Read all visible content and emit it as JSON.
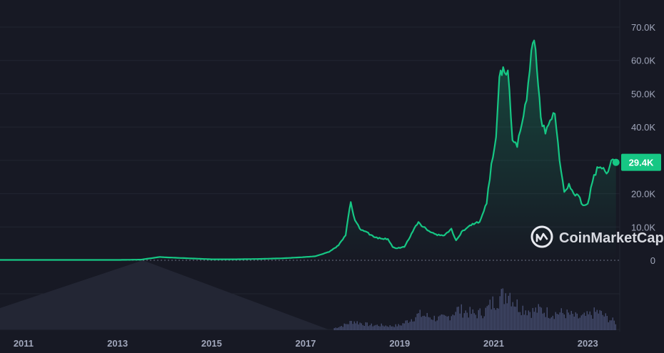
{
  "chart_data": {
    "type": "line",
    "series": [
      {
        "x": [
          2010.5,
          2011.5,
          2012.5,
          2013.0,
          2013.5,
          2013.9,
          2014.0,
          2014.5,
          2015.0,
          2015.5,
          2016.0,
          2016.5,
          2016.9,
          2017.2,
          2017.5,
          2017.7,
          2017.85,
          2017.96,
          2018.05,
          2018.15,
          2018.3,
          2018.45,
          2018.6,
          2018.75,
          2018.85,
          2018.95,
          2019.1,
          2019.25,
          2019.4,
          2019.5,
          2019.65,
          2019.8,
          2019.95,
          2020.1,
          2020.2,
          2020.35,
          2020.55,
          2020.7,
          2020.85,
          2020.95,
          2021.05,
          2021.12,
          2021.2,
          2021.3,
          2021.4,
          2021.5,
          2021.6,
          2021.7,
          2021.8,
          2021.86,
          2021.92,
          2022.0,
          2022.1,
          2022.2,
          2022.3,
          2022.4,
          2022.5,
          2022.6,
          2022.7,
          2022.8,
          2022.9,
          2023.0,
          2023.1,
          2023.2,
          2023.3,
          2023.4,
          2023.5,
          2023.6
        ],
        "values": [
          0.1,
          0.1,
          0.1,
          0.1,
          0.2,
          1.0,
          0.9,
          0.6,
          0.3,
          0.3,
          0.4,
          0.6,
          0.9,
          1.2,
          2.5,
          4.5,
          7.5,
          17.5,
          12.0,
          9.5,
          8.5,
          7.0,
          6.5,
          6.4,
          4.0,
          3.6,
          4.0,
          8.0,
          11.5,
          10.0,
          8.5,
          7.5,
          7.5,
          9.5,
          6.0,
          9.0,
          11.0,
          11.5,
          17.0,
          29.0,
          37.0,
          55.0,
          58.0,
          57.0,
          36.0,
          34.0,
          41.0,
          48.0,
          63.0,
          66.0,
          57.0,
          43.0,
          38.0,
          42.0,
          44.0,
          30.0,
          20.5,
          23.0,
          20.0,
          19.5,
          16.5,
          17.0,
          23.5,
          28.0,
          27.5,
          26.0,
          30.0,
          29.4
        ]
      }
    ],
    "volume": {
      "x": [
        2017.6,
        2017.8,
        2018.0,
        2018.2,
        2018.4,
        2018.6,
        2018.8,
        2019.0,
        2019.2,
        2019.4,
        2019.6,
        2019.8,
        2020.0,
        2020.2,
        2020.4,
        2020.6,
        2020.8,
        2021.0,
        2021.1,
        2021.2,
        2021.3,
        2021.4,
        2021.5,
        2021.6,
        2021.8,
        2022.0,
        2022.2,
        2022.4,
        2022.6,
        2022.8,
        2023.0,
        2023.2,
        2023.4,
        2023.6
      ],
      "values": [
        0.05,
        0.12,
        0.22,
        0.16,
        0.12,
        0.12,
        0.1,
        0.12,
        0.25,
        0.38,
        0.33,
        0.28,
        0.3,
        0.5,
        0.45,
        0.38,
        0.45,
        0.7,
        0.8,
        0.82,
        1.0,
        0.75,
        0.6,
        0.55,
        0.45,
        0.5,
        0.4,
        0.42,
        0.38,
        0.3,
        0.35,
        0.45,
        0.3,
        0.18
      ]
    },
    "xlim": [
      2010.5,
      2023.68
    ],
    "ylim": [
      0,
      75
    ],
    "yticks": [
      "70.0K",
      "60.0K",
      "50.0K",
      "40.0K",
      "30.0K",
      "20.0K",
      "10.0K",
      "0"
    ],
    "ytick_values": [
      70,
      60,
      50,
      40,
      30,
      20,
      10,
      0
    ],
    "xticks": [
      "2011",
      "2013",
      "2015",
      "2017",
      "2019",
      "2021",
      "2023"
    ],
    "xtick_values": [
      2011,
      2013,
      2015,
      2017,
      2019,
      2021,
      2023
    ],
    "current_price_label": "29.4K",
    "current_price": 29.4,
    "watermark": "CoinMarketCap",
    "grid": true,
    "colors": {
      "background": "#171924",
      "line": "#16c784",
      "grid": "#222531",
      "volume": "#4a5277",
      "tick_text": "#a1a7bb",
      "price_label_bg": "#16c784"
    }
  }
}
